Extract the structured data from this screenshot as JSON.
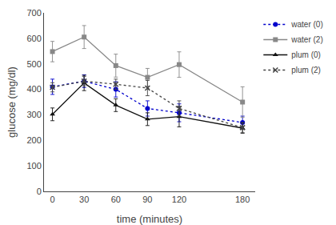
{
  "chart_data": {
    "type": "line",
    "x": [
      0,
      30,
      60,
      90,
      120,
      180
    ],
    "series": [
      {
        "name": "water (0)",
        "color": "#0000cc",
        "values": [
          410,
          432,
          400,
          325,
          308,
          270
        ],
        "yerr": [
          30,
          25,
          30,
          30,
          35,
          25
        ],
        "marker": "circle",
        "line_style": "dotted"
      },
      {
        "name": "water (2)",
        "color": "#888888",
        "values": [
          548,
          605,
          493,
          447,
          497,
          350
        ],
        "yerr": [
          40,
          45,
          45,
          35,
          50,
          60
        ],
        "marker": "square",
        "line_style": "solid"
      },
      {
        "name": "plum (0)",
        "color": "#111111",
        "values": [
          302,
          425,
          338,
          283,
          293,
          248
        ],
        "yerr": [
          25,
          30,
          25,
          25,
          40,
          20
        ],
        "marker": "triangle-up",
        "line_style": "solid"
      },
      {
        "name": "plum (2)",
        "color": "#444444",
        "values": [
          408,
          432,
          420,
          405,
          325,
          250
        ],
        "yerr": [
          18,
          18,
          20,
          30,
          30,
          20
        ],
        "marker": "x",
        "line_style": "dotted"
      }
    ],
    "xlabel": "time (minutes)",
    "ylabel": "glucose (mg/dl)",
    "xlim": [
      -8,
      192
    ],
    "xticks": [
      0,
      30,
      60,
      90,
      120,
      180
    ],
    "ylim": [
      0,
      700
    ],
    "yticks": [
      0,
      100,
      200,
      300,
      400,
      500,
      600,
      700
    ],
    "grid": false,
    "legend": "upper right"
  }
}
